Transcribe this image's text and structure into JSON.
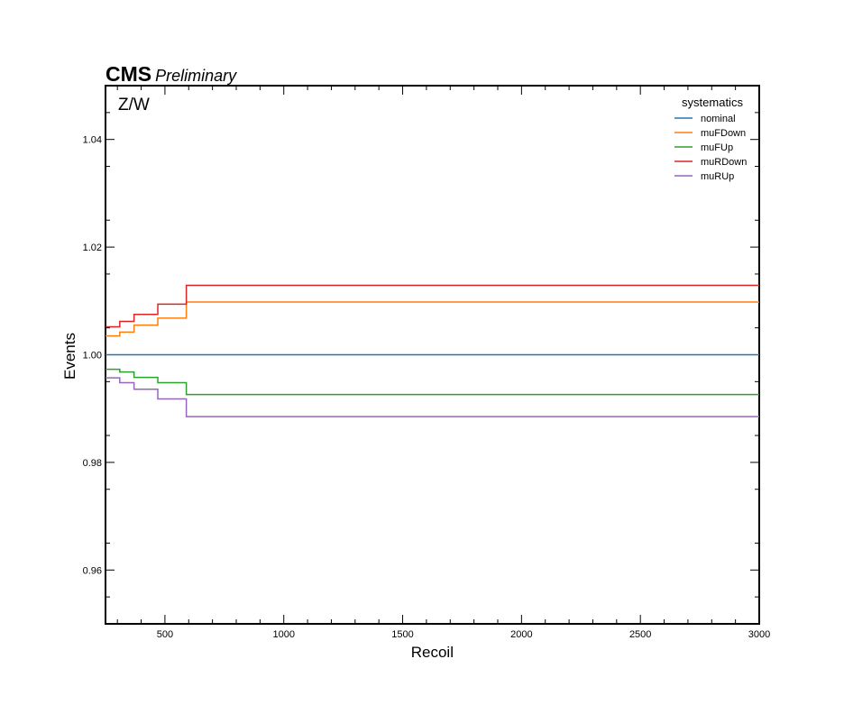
{
  "header": {
    "experiment": "CMS",
    "status": "Preliminary"
  },
  "chart_data": {
    "type": "line",
    "drawstyle": "steps",
    "annotation": "Z/W",
    "xlabel": "Recoil",
    "ylabel": "Events",
    "xlim": [
      250,
      3000
    ],
    "ylim": [
      0.95,
      1.05
    ],
    "x_ticks": [
      500,
      1000,
      1500,
      2000,
      2500,
      3000
    ],
    "y_ticks": [
      0.96,
      0.98,
      1.0,
      1.02,
      1.04
    ],
    "y_tick_labels": [
      "0.96",
      "0.98",
      "1.00",
      "1.02",
      "1.04"
    ],
    "grid": false,
    "legend": {
      "title": "systematics",
      "placement": "top-right"
    },
    "bin_edges": [
      250,
      310,
      370,
      470,
      590,
      3000
    ],
    "series": [
      {
        "name": "nominal",
        "color": "#1f77b4",
        "values": [
          1.0,
          1.0,
          1.0,
          1.0,
          1.0
        ]
      },
      {
        "name": "muFDown",
        "color": "#ff7f0e",
        "values": [
          1.0035,
          1.0042,
          1.0055,
          1.0068,
          1.0098
        ]
      },
      {
        "name": "muFUp",
        "color": "#2ca02c",
        "values": [
          0.9973,
          0.9968,
          0.9958,
          0.9948,
          0.9926
        ]
      },
      {
        "name": "muRDown",
        "color": "#d62728",
        "values": [
          1.0052,
          1.0062,
          1.0075,
          1.0094,
          1.0129
        ]
      },
      {
        "name": "muRUp",
        "color": "#9467bd",
        "values": [
          0.9957,
          0.9948,
          0.9936,
          0.9918,
          0.9885
        ]
      }
    ]
  }
}
